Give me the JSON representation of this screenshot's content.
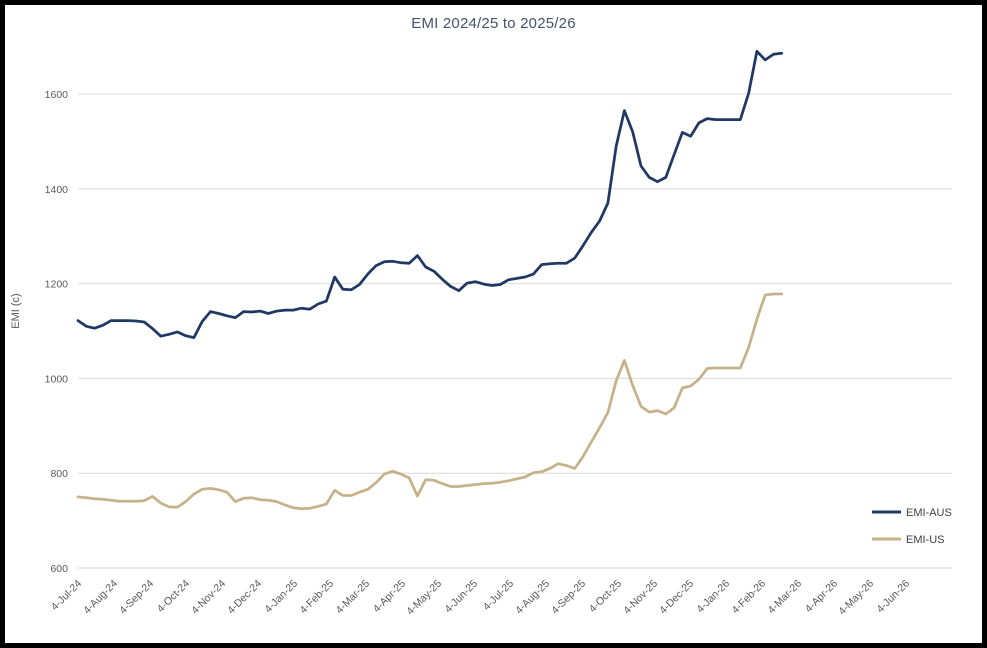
{
  "window": {
    "background": "#FFFFFF",
    "border_color": "#000000"
  },
  "chart_data": {
    "type": "line",
    "title": "EMI 2024/25 to 2025/26",
    "xlabel": "",
    "ylabel": "EMI (c)",
    "ylim": [
      600,
      1700
    ],
    "yticks": [
      600,
      800,
      1000,
      1200,
      1400,
      1600
    ],
    "grid": "horizontal",
    "gridline_color": "#D9D9D9",
    "axis_text_color": "#595959",
    "title_color": "#44546A",
    "legend_position": "right-lower",
    "legend_text_color": "#404040",
    "x_tick_labels": [
      "4-Jul-24",
      "4-Aug-24",
      "4-Sep-24",
      "4-Oct-24",
      "4-Nov-24",
      "4-Dec-24",
      "4-Jan-25",
      "4-Feb-25",
      "4-Mar-25",
      "4-Apr-25",
      "4-May-25",
      "4-Jun-25",
      "4-Jul-25",
      "4-Aug-25",
      "4-Sep-25",
      "4-Oct-25",
      "4-Nov-25",
      "4-Dec-25",
      "4-Jan-26",
      "4-Feb-26",
      "4-Mar-26",
      "4-Apr-26",
      "4-May-26",
      "4-Jun-26"
    ],
    "x_sampling": "weekly points starting 4-Jul-24; month ticks on the 4th of each month; series end ~3 weeks after 4-Feb-26",
    "series": [
      {
        "name": "EMI-AUS",
        "color": "#1F3864",
        "values": [
          1122,
          1110,
          1106,
          1112,
          1122,
          1122,
          1122,
          1121,
          1119,
          1105,
          1089,
          1093,
          1098,
          1090,
          1086,
          1120,
          1141,
          1137,
          1132,
          1128,
          1141,
          1140,
          1142,
          1137,
          1142,
          1144,
          1144,
          1148,
          1146,
          1157,
          1163,
          1214,
          1188,
          1187,
          1198,
          1220,
          1238,
          1246,
          1247,
          1244,
          1243,
          1259,
          1235,
          1226,
          1209,
          1194,
          1185,
          1201,
          1204,
          1199,
          1196,
          1198,
          1208,
          1211,
          1214,
          1220,
          1240,
          1242,
          1243,
          1243,
          1254,
          1280,
          1308,
          1332,
          1370,
          1490,
          1565,
          1520,
          1448,
          1424,
          1415,
          1424,
          1472,
          1519,
          1511,
          1539,
          1548,
          1546,
          1546,
          1546,
          1546,
          1601,
          1690,
          1672,
          1684,
          1686
        ]
      },
      {
        "name": "EMI-US",
        "color": "#C6B28A",
        "values": [
          750,
          748,
          746,
          745,
          743,
          741,
          741,
          741,
          742,
          751,
          737,
          729,
          728,
          740,
          756,
          766,
          768,
          765,
          760,
          740,
          747,
          748,
          744,
          743,
          740,
          733,
          727,
          725,
          726,
          730,
          735,
          764,
          753,
          753,
          760,
          766,
          780,
          798,
          804,
          798,
          790,
          752,
          786,
          785,
          778,
          772,
          772,
          774,
          776,
          778,
          779,
          781,
          784,
          788,
          792,
          801,
          803,
          810,
          820,
          816,
          810,
          835,
          866,
          896,
          928,
          995,
          1038,
          985,
          941,
          929,
          932,
          925,
          938,
          980,
          984,
          998,
          1021,
          1022,
          1022,
          1022,
          1022,
          1065,
          1125,
          1176,
          1178,
          1178
        ]
      }
    ]
  }
}
